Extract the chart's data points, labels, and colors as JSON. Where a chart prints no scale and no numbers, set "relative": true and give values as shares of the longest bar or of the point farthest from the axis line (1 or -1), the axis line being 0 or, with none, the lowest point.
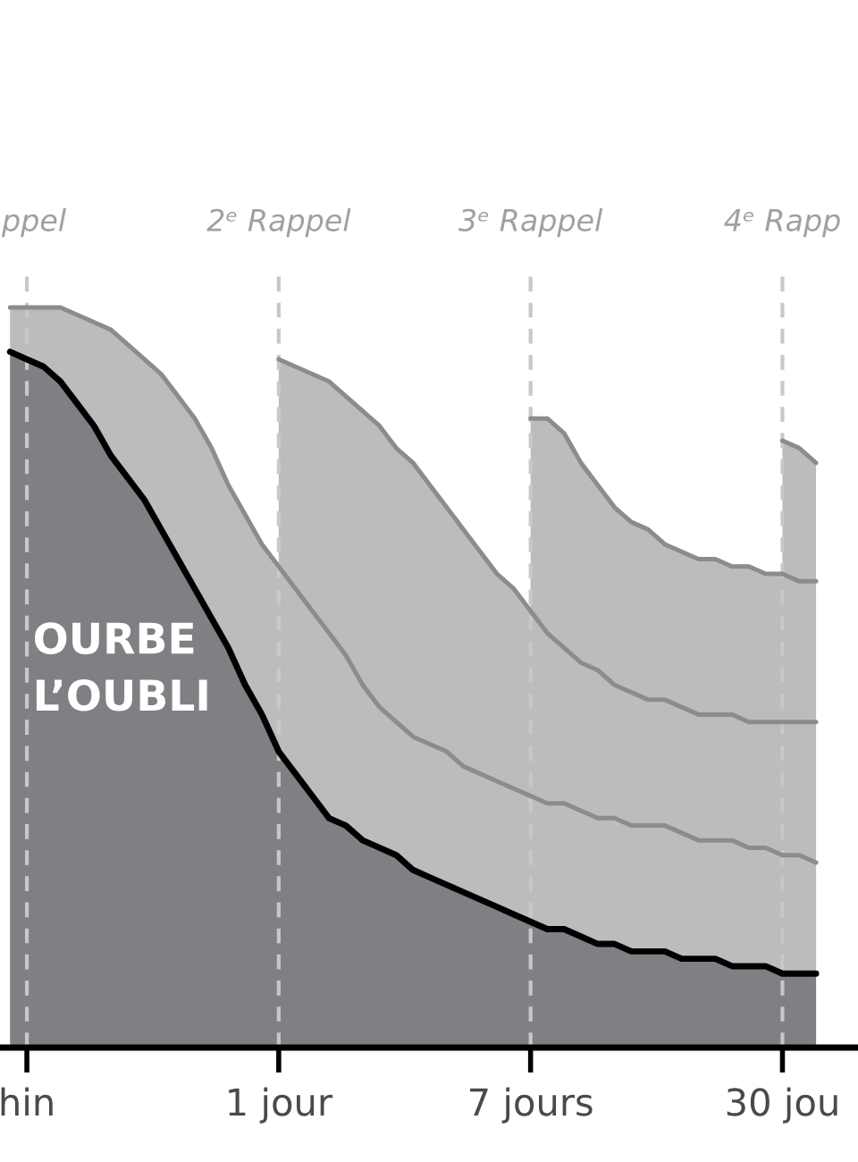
{
  "chart_data": {
    "type": "area",
    "relative": true,
    "categories": [
      null,
      "hin",
      null,
      null,
      null,
      null,
      null,
      null,
      null,
      null,
      null,
      null,
      null,
      null,
      null,
      null,
      "1 jour",
      null,
      null,
      null,
      null,
      null,
      null,
      null,
      null,
      null,
      null,
      null,
      null,
      null,
      null,
      "7 jours",
      null,
      null,
      null,
      null,
      null,
      null,
      null,
      null,
      null,
      null,
      null,
      null,
      null,
      null,
      "30 jou",
      null,
      null
    ],
    "series": [
      {
        "color": "#bbbcbe",
        "values": [
          1.0,
          1.0,
          1.0,
          1.0,
          0.99,
          0.98,
          0.97,
          0.95,
          0.93,
          0.91,
          0.88,
          0.85,
          0.81,
          0.76,
          0.72,
          0.68,
          0.65,
          0.62,
          0.59,
          0.56,
          0.53,
          0.49,
          0.46,
          0.44,
          0.42,
          0.41,
          0.4,
          0.38,
          0.37,
          0.36,
          0.35,
          0.34,
          0.33,
          0.33,
          0.32,
          0.31,
          0.31,
          0.3,
          0.3,
          0.3,
          0.29,
          0.28,
          0.28,
          0.28,
          0.27,
          0.27,
          0.26,
          0.26,
          0.25
        ]
      },
      {
        "color": "#bbbcbe",
        "values": [
          null,
          null,
          null,
          null,
          null,
          null,
          null,
          null,
          null,
          null,
          null,
          null,
          null,
          null,
          null,
          null,
          0.93,
          0.92,
          0.91,
          0.9,
          0.88,
          0.86,
          0.84,
          0.81,
          0.79,
          0.76,
          0.73,
          0.7,
          0.67,
          0.64,
          0.62,
          0.59,
          0.56,
          0.54,
          0.52,
          0.51,
          0.49,
          0.48,
          0.47,
          0.47,
          0.46,
          0.45,
          0.45,
          0.45,
          0.44,
          0.44,
          0.44,
          0.44,
          0.44
        ]
      },
      {
        "color": "#bbbcbe",
        "values": [
          null,
          null,
          null,
          null,
          null,
          null,
          null,
          null,
          null,
          null,
          null,
          null,
          null,
          null,
          null,
          null,
          null,
          null,
          null,
          null,
          null,
          null,
          null,
          null,
          null,
          null,
          null,
          null,
          null,
          null,
          null,
          0.85,
          0.85,
          0.83,
          0.79,
          0.76,
          0.73,
          0.71,
          0.7,
          0.68,
          0.67,
          0.66,
          0.66,
          0.65,
          0.65,
          0.64,
          0.64,
          0.63,
          0.63
        ]
      },
      {
        "color": "#bbbcbe",
        "values": [
          null,
          null,
          null,
          null,
          null,
          null,
          null,
          null,
          null,
          null,
          null,
          null,
          null,
          null,
          null,
          null,
          null,
          null,
          null,
          null,
          null,
          null,
          null,
          null,
          null,
          null,
          null,
          null,
          null,
          null,
          null,
          null,
          null,
          null,
          null,
          null,
          null,
          null,
          null,
          null,
          null,
          null,
          null,
          null,
          null,
          null,
          0.82,
          0.81,
          0.79
        ]
      },
      {
        "color": "#7f8083",
        "values": [
          0.94,
          0.93,
          0.92,
          0.9,
          0.87,
          0.84,
          0.8,
          0.77,
          0.74,
          0.7,
          0.66,
          0.62,
          0.58,
          0.54,
          0.49,
          0.45,
          0.4,
          0.37,
          0.34,
          0.31,
          0.3,
          0.28,
          0.27,
          0.26,
          0.24,
          0.23,
          0.22,
          0.21,
          0.2,
          0.19,
          0.18,
          0.17,
          0.16,
          0.16,
          0.15,
          0.14,
          0.14,
          0.13,
          0.13,
          0.13,
          0.12,
          0.12,
          0.12,
          0.11,
          0.11,
          0.11,
          0.1,
          0.1,
          0.1
        ]
      }
    ],
    "ref_lines": [
      {
        "axis": "x",
        "value": "hin",
        "label": "ppel",
        "color": "#c8c8c8",
        "line_style": "dashed"
      },
      {
        "axis": "x",
        "value": "1 jour",
        "label": "2ᵉ Rappel",
        "color": "#c8c8c8",
        "line_style": "dashed"
      },
      {
        "axis": "x",
        "value": "7 jours",
        "label": "3ᵉ Rappel",
        "color": "#c8c8c8",
        "line_style": "dashed"
      },
      {
        "axis": "x",
        "value": "30 jou",
        "label": "4ᵉ Rapp",
        "color": "#c8c8c8",
        "line_style": "dashed"
      }
    ],
    "annotations": [
      "OURBE\nL’OUBLI"
    ]
  }
}
